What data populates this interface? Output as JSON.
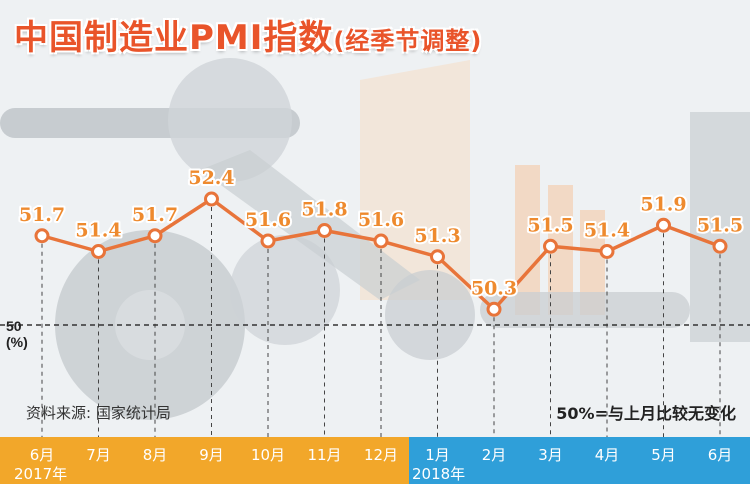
{
  "title": "中国制造业PMI指数",
  "subtitle": "(经季节调整)",
  "source": "资料来源: 国家统计局",
  "note": "50%=与上月比较无变化",
  "reference": {
    "value": 50,
    "label": "50",
    "unit": "(%)"
  },
  "colors": {
    "title": "#e9542a",
    "line": "#e8743a",
    "year_2017_bar": "#f2a72a",
    "year_2018_bar": "#2f9fd9",
    "label_text": "#ee8a2e"
  },
  "chart_data": {
    "type": "line",
    "title": "中国制造业PMI指数",
    "subtitle": "(经季节调整)",
    "xlabel": "",
    "ylabel": "(%)",
    "categories": [
      "6月",
      "7月",
      "8月",
      "9月",
      "10月",
      "11月",
      "12月",
      "1月",
      "2月",
      "3月",
      "4月",
      "5月",
      "6月"
    ],
    "years": [
      {
        "label": "2017年",
        "start_index": 0,
        "end_index": 6
      },
      {
        "label": "2018年",
        "start_index": 7,
        "end_index": 12
      }
    ],
    "values": [
      51.7,
      51.4,
      51.7,
      52.4,
      51.6,
      51.8,
      51.6,
      51.3,
      50.3,
      51.5,
      51.4,
      51.9,
      51.5
    ],
    "value_labels": [
      "51.7",
      "51.4",
      "51.7",
      "52.4",
      "51.6",
      "51.8",
      "51.6",
      "51.3",
      "50.3",
      "51.5",
      "51.4",
      "51.9",
      "51.5"
    ],
    "reference_line": 50,
    "grid": false,
    "legend": "none"
  }
}
